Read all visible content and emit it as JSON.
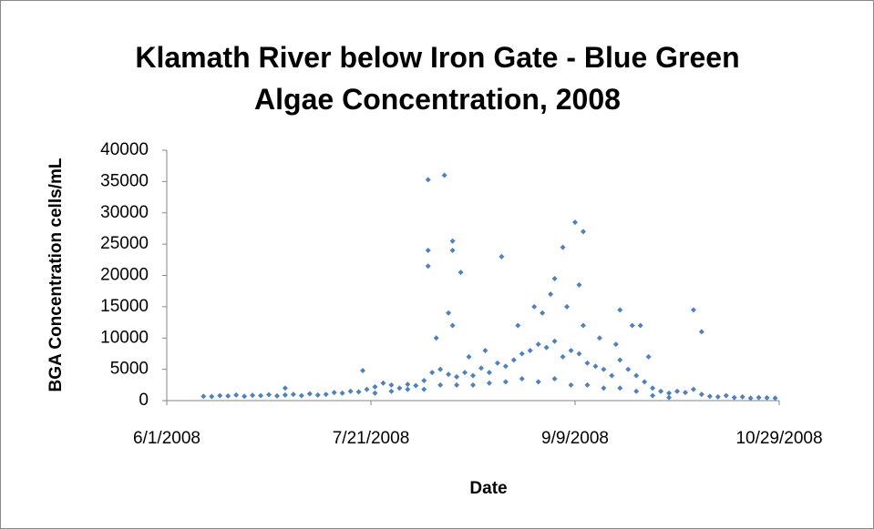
{
  "chart_data": {
    "type": "scatter",
    "title": "Klamath River below Iron Gate - Blue Green Algae Concentration, 2008",
    "x_label": "Date",
    "y_label": "BGA Concentration cells/mL",
    "xlim": [
      "6/1/2008",
      "10/29/2008"
    ],
    "xticks": [
      "6/1/2008",
      "7/21/2008",
      "9/9/2008",
      "10/29/2008"
    ],
    "ylim": [
      0,
      40000
    ],
    "yticks": [
      0,
      5000,
      10000,
      15000,
      20000,
      25000,
      30000,
      35000,
      40000
    ],
    "grid": false,
    "series": [
      {
        "name": "BGA",
        "color": "#4f81bd",
        "x": [
          "6/10/2008",
          "6/12/2008",
          "6/14/2008",
          "6/16/2008",
          "6/18/2008",
          "6/20/2008",
          "6/22/2008",
          "6/24/2008",
          "6/26/2008",
          "6/28/2008",
          "6/30/2008",
          "7/2/2008",
          "7/4/2008",
          "7/6/2008",
          "7/8/2008",
          "7/10/2008",
          "7/12/2008",
          "7/14/2008",
          "7/16/2008",
          "7/18/2008",
          "7/20/2008",
          "7/22/2008",
          "7/24/2008",
          "7/26/2008",
          "7/28/2008",
          "7/30/2008",
          "8/1/2008",
          "8/3/2008",
          "8/5/2008",
          "8/7/2008",
          "8/9/2008",
          "8/11/2008",
          "8/13/2008",
          "8/15/2008",
          "8/17/2008",
          "8/19/2008",
          "8/21/2008",
          "8/23/2008",
          "8/25/2008",
          "8/27/2008",
          "8/29/2008",
          "8/31/2008",
          "9/2/2008",
          "9/4/2008",
          "9/6/2008",
          "9/8/2008",
          "9/10/2008",
          "9/12/2008",
          "9/14/2008",
          "9/16/2008",
          "9/18/2008",
          "9/20/2008",
          "9/22/2008",
          "9/24/2008",
          "9/26/2008",
          "9/28/2008",
          "9/30/2008",
          "10/2/2008",
          "10/4/2008",
          "10/6/2008",
          "10/8/2008",
          "10/10/2008",
          "10/12/2008",
          "10/14/2008",
          "10/16/2008",
          "10/18/2008",
          "10/20/2008",
          "10/22/2008",
          "10/24/2008",
          "10/26/2008",
          "10/28/2008",
          "7/22/2008",
          "7/26/2008",
          "7/30/2008",
          "8/3/2008",
          "8/7/2008",
          "8/11/2008",
          "8/15/2008",
          "8/19/2008",
          "8/23/2008",
          "8/27/2008",
          "8/31/2008",
          "9/4/2008",
          "9/8/2008",
          "9/12/2008",
          "9/16/2008",
          "9/20/2008",
          "9/24/2008",
          "9/28/2008",
          "10/2/2008",
          "8/14/2008",
          "8/18/2008",
          "8/26/2008",
          "8/30/2008",
          "9/1/2008",
          "9/3/2008",
          "9/7/2008",
          "9/11/2008",
          "9/15/2008",
          "9/19/2008",
          "9/23/2008",
          "9/27/2008",
          "8/9/2008",
          "8/10/2008",
          "8/6/2008",
          "7/19/2008",
          "8/4/2008",
          "8/4/2008",
          "8/4/2008",
          "8/8/2008",
          "8/10/2008",
          "8/10/2008",
          "8/12/2008",
          "8/22/2008",
          "9/4/2008",
          "9/6/2008",
          "9/9/2008",
          "9/11/2008",
          "9/10/2008",
          "9/20/2008",
          "9/25/2008",
          "10/8/2008",
          "10/10/2008",
          "6/30/2008"
        ],
        "values": [
          700,
          650,
          800,
          750,
          900,
          700,
          850,
          800,
          950,
          750,
          900,
          1000,
          800,
          1100,
          900,
          1000,
          1300,
          1200,
          1500,
          1400,
          1800,
          2200,
          2800,
          2500,
          2000,
          2600,
          2400,
          3200,
          4500,
          5000,
          4200,
          3800,
          4500,
          4000,
          5200,
          4500,
          6000,
          5500,
          6500,
          7500,
          8000,
          9000,
          8500,
          9500,
          7000,
          8000,
          7500,
          6000,
          5500,
          5000,
          4000,
          6500,
          5000,
          4000,
          3000,
          2000,
          1500,
          1200,
          1500,
          1300,
          1800,
          1000,
          700,
          600,
          800,
          500,
          600,
          400,
          500,
          450,
          400,
          1200,
          1500,
          1800,
          1800,
          2500,
          2500,
          2500,
          2800,
          3000,
          3500,
          3000,
          3500,
          2500,
          2500,
          2000,
          2000,
          1500,
          800,
          500,
          7000,
          8000,
          12000,
          15000,
          14000,
          17000,
          15000,
          12000,
          10000,
          9000,
          12000,
          7000,
          14000,
          12000,
          10000,
          4800,
          35300,
          24000,
          21500,
          36000,
          25500,
          24000,
          20500,
          23000,
          19500,
          24500,
          28500,
          27000,
          18500,
          14500,
          12000,
          14500,
          11000,
          2000
        ]
      }
    ]
  }
}
